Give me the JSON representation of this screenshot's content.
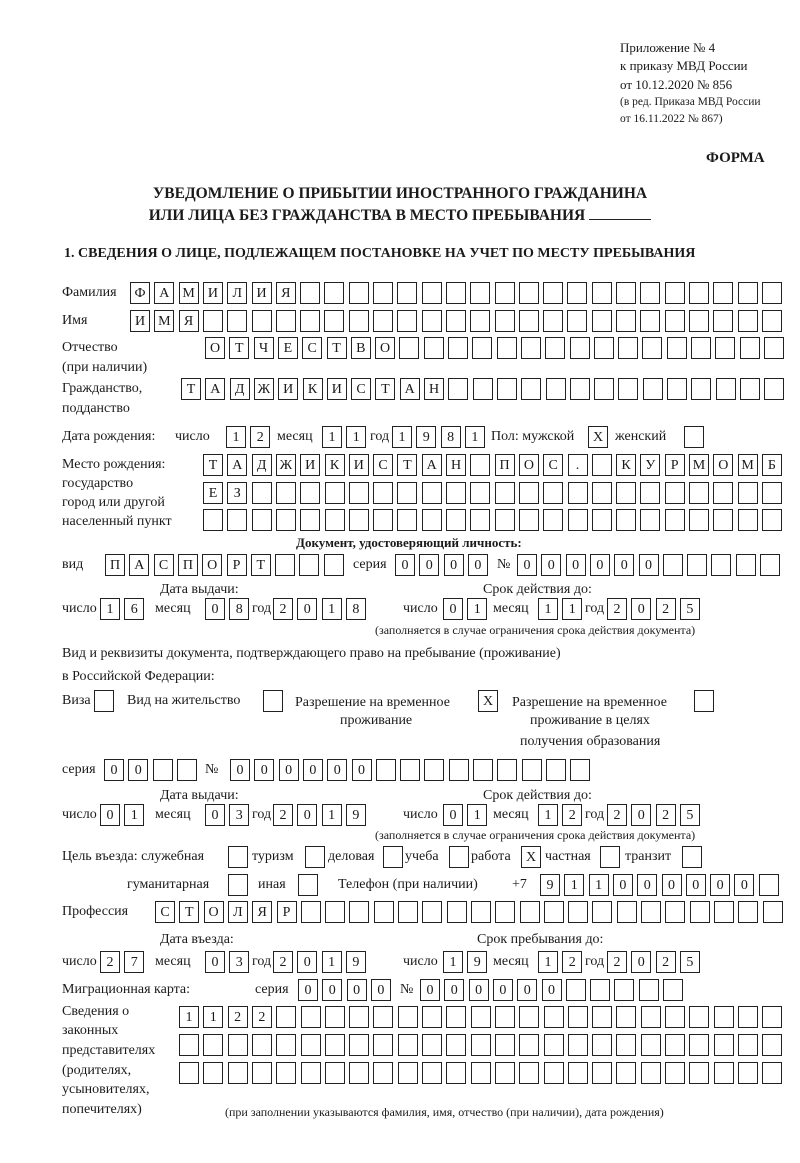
{
  "header": {
    "appendix": "Приложение № 4",
    "order": "к приказу МВД России",
    "order_date": "от 10.12.2020 № 856",
    "revision_1": "(в ред. Приказа МВД России",
    "revision_2": "от 16.11.2022 № 867)",
    "form_label": "ФОРМА",
    "title_1": "УВЕДОМЛЕНИЕ О ПРИБЫТИИ ИНОСТРАННОГО ГРАЖДАНИНА",
    "title_2": "ИЛИ ЛИЦА БЕЗ ГРАЖДАНСТВА В МЕСТО ПРЕБЫВАНИЯ",
    "section_1": "1. СВЕДЕНИЯ О ЛИЦЕ, ПОДЛЕЖАЩЕМ ПОСТАНОВКЕ НА УЧЕТ ПО МЕСТУ ПРЕБЫВАНИЯ"
  },
  "labels": {
    "surname": "Фамилия",
    "name": "Имя",
    "patronymic_1": "Отчество",
    "patronymic_2": "(при наличии)",
    "citizenship_1": "Гражданство,",
    "citizenship_2": "подданство",
    "birth_date": "Дата рождения:",
    "day": "число",
    "month": "месяц",
    "year": "год",
    "sex_male": "Пол: мужской",
    "sex_female": "женский",
    "birthplace_1": "Место рождения:",
    "birthplace_2": "государство",
    "birthplace_3": "город или другой",
    "birthplace_4": "населенный пункт",
    "id_doc": "Документ, удостоверяющий личность:",
    "kind": "вид",
    "series": "серия",
    "number": "№",
    "issue_date": "Дата выдачи:",
    "valid_until": "Срок действия до:",
    "validity_note": "(заполняется в случае ограничения срока действия документа)",
    "right_doc_1": "Вид и реквизиты документа, подтверждающего право на пребывание (проживание)",
    "right_doc_2": "в Российской Федерации:",
    "visa": "Виза",
    "residence_permit": "Вид на жительство",
    "temp_residence_1": "Разрешение на временное",
    "temp_residence_2": "проживание",
    "temp_edu_1": "Разрешение на временное",
    "temp_edu_2": "проживание в целях",
    "temp_edu_3": "получения образования",
    "purpose": "Цель въезда: служебная",
    "tourism": "туризм",
    "business": "деловая",
    "study": "учеба",
    "work": "работа",
    "private": "частная",
    "transit": "транзит",
    "humanitarian": "гуманитарная",
    "other": "иная",
    "phone": "Телефон (при наличии)",
    "phone_prefix": "+7",
    "profession": "Профессия",
    "entry_date": "Дата въезда:",
    "stay_until": "Срок пребывания до:",
    "migration_card": "Миграционная карта:",
    "reps_1": "Сведения о",
    "reps_2": "законных",
    "reps_3": "представителях",
    "reps_4": "(родителях,",
    "reps_5": "усыновителях,",
    "reps_6": "попечителях)",
    "reps_note": "(при заполнении указываются фамилия, имя, отчество (при наличии), дата рождения)"
  },
  "person": {
    "surname": "ФАМИЛИЯ",
    "name": "ИМЯ",
    "patronymic": "ОТЧЕСТВО",
    "citizenship": "ТАДЖИКИСТАН",
    "birth_day": "12",
    "birth_month": "11",
    "birth_year": "1981",
    "sex_male": "X",
    "sex_female": "",
    "birthplace_1": "ТАДЖИКИСТАН ПОС. КУРМОМБ",
    "birthplace_2": "ЕЗ",
    "birthplace_3": ""
  },
  "id_document": {
    "kind": "ПАСПОРТ",
    "series": "0000",
    "number": "000000",
    "issue_day": "16",
    "issue_month": "08",
    "issue_year": "2018",
    "valid_day": "01",
    "valid_month": "11",
    "valid_year": "2025"
  },
  "right_document": {
    "visa": "",
    "residence_permit": "",
    "temp_residence": "X",
    "temp_edu": "",
    "series": "00",
    "number": "000000",
    "issue_day": "01",
    "issue_month": "03",
    "issue_year": "2019",
    "valid_day": "01",
    "valid_month": "12",
    "valid_year": "2025"
  },
  "purpose": {
    "official": "",
    "tourism": "",
    "business": "",
    "study": "",
    "work": "X",
    "private": "",
    "transit": "",
    "humanitarian": "",
    "other": ""
  },
  "phone": "911000000",
  "profession": "СТОЛЯР",
  "entry": {
    "entry_day": "27",
    "entry_month": "03",
    "entry_year": "2019",
    "stay_day": "19",
    "stay_month": "12",
    "stay_year": "2025"
  },
  "migration_card": {
    "series": "0000",
    "number": "000000"
  },
  "representatives": {
    "line_1": "1122",
    "line_2": "",
    "line_3": ""
  }
}
